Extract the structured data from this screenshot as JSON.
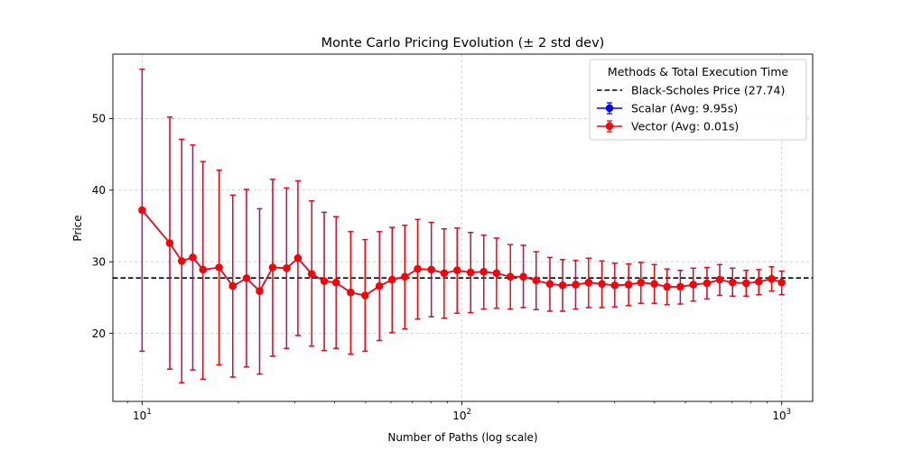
{
  "chart_data": {
    "type": "line",
    "title": "Monte Carlo Pricing Evolution (± 2 std dev)",
    "xlabel": "Number of Paths (log scale)",
    "ylabel": "Price",
    "xscale": "log",
    "xlim": [
      8.1,
      1250
    ],
    "ylim": [
      10.5,
      59
    ],
    "x_ticks": [
      {
        "value": 10,
        "base": "10",
        "exp": "1"
      },
      {
        "value": 100,
        "base": "10",
        "exp": "2"
      },
      {
        "value": 1000,
        "base": "10",
        "exp": "3"
      }
    ],
    "y_ticks": [
      20,
      30,
      40,
      50
    ],
    "grid": true,
    "legend": {
      "title": "Methods & Total Execution Time",
      "placement": "top-right"
    },
    "reference_line": {
      "name": "Black-Scholes Price (27.74)",
      "value": 27.74,
      "color": "#000000",
      "style": "dashed"
    },
    "x": [
      10,
      12.2,
      13.3,
      14.4,
      15.5,
      17.4,
      19.2,
      21.2,
      23.3,
      25.6,
      28.3,
      30.7,
      33.9,
      37.1,
      40.4,
      44.9,
      49.8,
      55.2,
      60.5,
      66.3,
      72.7,
      80.2,
      88.0,
      96.6,
      106.5,
      117.0,
      128.3,
      141.7,
      155.6,
      170.6,
      188.4,
      206.5,
      226.8,
      249.0,
      274.0,
      300.6,
      332.0,
      363.0,
      399.6,
      438.0,
      482.0,
      529.0,
      584.0,
      640.0,
      702.0,
      774.0,
      848.0,
      930.0,
      1000.0
    ],
    "series": [
      {
        "name": "Scalar (Avg: 9.95s)",
        "color": "#0000ff",
        "y": [
          37.2,
          32.6,
          30.1,
          30.6,
          28.9,
          29.2,
          26.6,
          27.7,
          25.9,
          29.2,
          29.1,
          30.5,
          28.3,
          27.3,
          27.1,
          25.7,
          25.3,
          26.6,
          27.5,
          27.9,
          29.0,
          28.9,
          28.4,
          28.8,
          28.5,
          28.6,
          28.4,
          27.9,
          27.9,
          27.4,
          26.9,
          26.7,
          26.8,
          27.1,
          26.9,
          26.7,
          26.8,
          27.1,
          26.9,
          26.5,
          26.5,
          26.8,
          27.0,
          27.5,
          27.1,
          27.0,
          27.2,
          27.6,
          27.1
        ],
        "y_upper": [
          56.9,
          50.2,
          47.1,
          46.3,
          44.0,
          42.8,
          39.3,
          40.1,
          37.4,
          41.5,
          40.3,
          41.3,
          38.5,
          36.9,
          36.3,
          34.2,
          33.1,
          34.2,
          34.8,
          35.1,
          35.9,
          35.5,
          34.6,
          34.7,
          34.1,
          33.7,
          33.3,
          32.4,
          32.3,
          31.4,
          30.6,
          30.3,
          30.2,
          30.5,
          30.1,
          29.8,
          29.7,
          29.9,
          29.6,
          29.0,
          28.8,
          29.1,
          29.2,
          29.6,
          29.1,
          28.8,
          28.9,
          29.3,
          28.7
        ],
        "y_lower": [
          17.5,
          15.0,
          13.1,
          14.9,
          13.6,
          15.6,
          13.9,
          15.3,
          14.3,
          16.8,
          17.9,
          19.7,
          18.2,
          17.6,
          17.9,
          17.1,
          17.5,
          19.0,
          20.1,
          20.6,
          22.0,
          22.3,
          22.1,
          22.8,
          22.9,
          23.4,
          23.5,
          23.4,
          23.6,
          23.3,
          23.1,
          23.1,
          23.4,
          23.6,
          23.6,
          23.7,
          23.9,
          24.2,
          24.2,
          24.0,
          24.1,
          24.5,
          24.8,
          25.3,
          25.2,
          25.2,
          25.4,
          25.9,
          25.4
        ]
      },
      {
        "name": "Vector (Avg: 0.01s)",
        "color": "#ff0000",
        "y": [
          37.2,
          32.6,
          30.1,
          30.6,
          28.9,
          29.2,
          26.6,
          27.7,
          25.9,
          29.2,
          29.1,
          30.5,
          28.3,
          27.3,
          27.1,
          25.7,
          25.3,
          26.6,
          27.5,
          27.9,
          29.0,
          28.9,
          28.4,
          28.8,
          28.5,
          28.6,
          28.4,
          27.9,
          27.9,
          27.4,
          26.9,
          26.7,
          26.8,
          27.1,
          26.9,
          26.7,
          26.8,
          27.1,
          26.9,
          26.5,
          26.5,
          26.8,
          27.0,
          27.5,
          27.1,
          27.0,
          27.2,
          27.6,
          27.1
        ],
        "y_upper": [
          56.9,
          50.2,
          47.1,
          46.3,
          44.0,
          42.8,
          39.3,
          40.1,
          37.4,
          41.5,
          40.3,
          41.3,
          38.5,
          36.9,
          36.3,
          34.2,
          33.1,
          34.2,
          34.8,
          35.1,
          35.9,
          35.5,
          34.6,
          34.7,
          34.1,
          33.7,
          33.3,
          32.4,
          32.3,
          31.4,
          30.6,
          30.3,
          30.2,
          30.5,
          30.1,
          29.8,
          29.7,
          29.9,
          29.6,
          29.0,
          28.8,
          29.1,
          29.2,
          29.6,
          29.1,
          28.8,
          28.9,
          29.3,
          28.7
        ],
        "y_lower": [
          17.5,
          15.0,
          13.1,
          14.9,
          13.6,
          15.6,
          13.9,
          15.3,
          14.3,
          16.8,
          17.9,
          19.7,
          18.2,
          17.6,
          17.9,
          17.1,
          17.5,
          19.0,
          20.1,
          20.6,
          22.0,
          22.3,
          22.1,
          22.8,
          22.9,
          23.4,
          23.5,
          23.4,
          23.6,
          23.3,
          23.1,
          23.1,
          23.4,
          23.6,
          23.6,
          23.7,
          23.9,
          24.2,
          24.2,
          24.0,
          24.1,
          24.5,
          24.8,
          25.3,
          25.2,
          25.2,
          25.4,
          25.9,
          25.4
        ]
      }
    ]
  }
}
